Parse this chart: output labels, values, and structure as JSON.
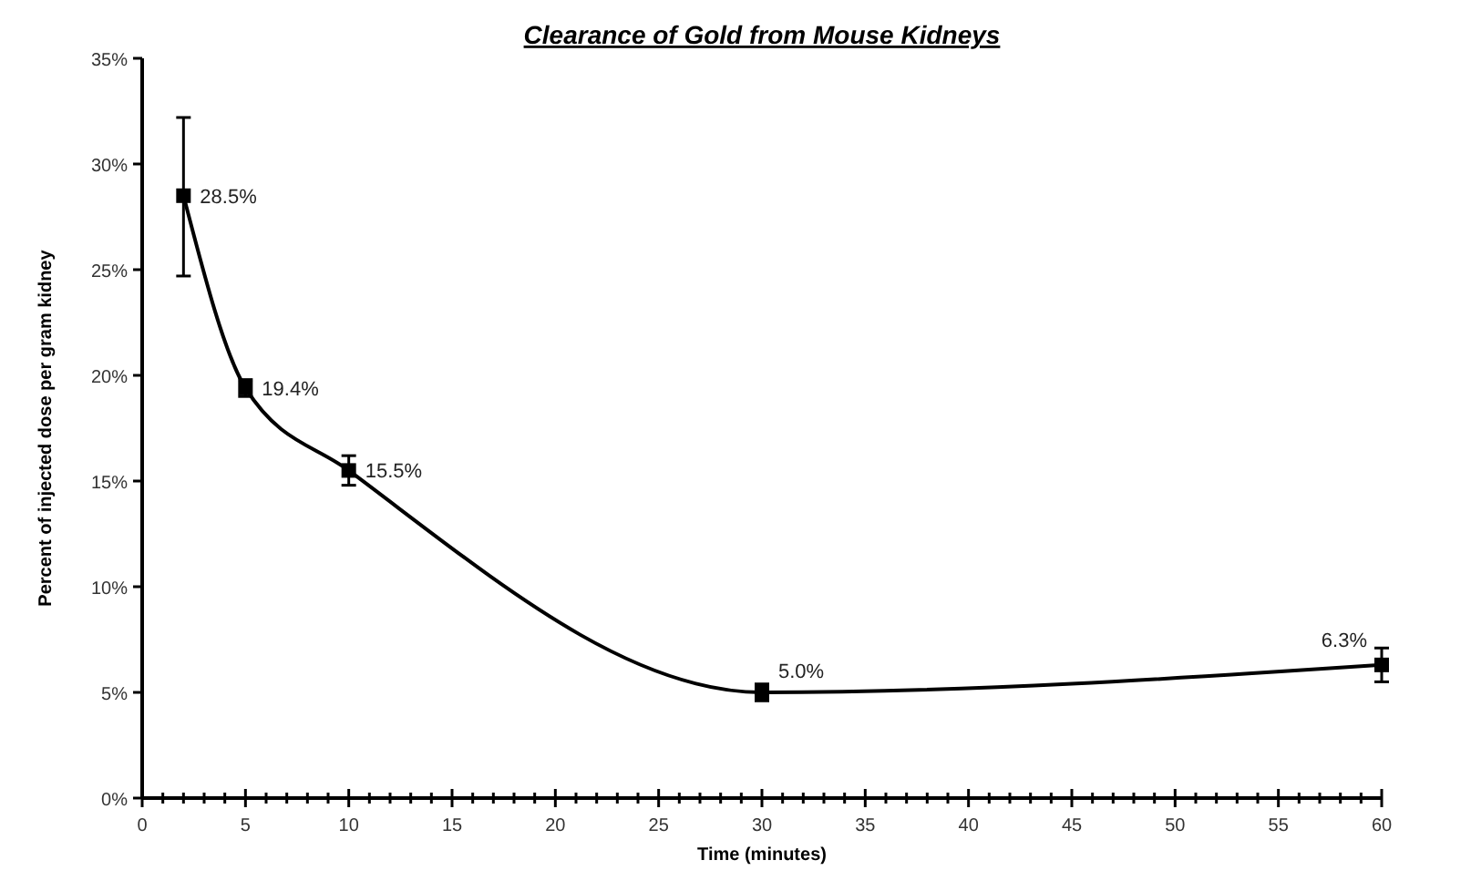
{
  "chart_data": {
    "type": "line",
    "title": "Clearance of Gold from Mouse Kidneys",
    "xlabel": "Time (minutes)",
    "ylabel": "Percent of injected dose per gram kidney",
    "x": [
      2,
      5,
      10,
      30,
      60
    ],
    "series": [
      {
        "color": "#000000",
        "values": [
          28.5,
          19.4,
          15.5,
          5.0,
          6.3
        ],
        "errors": [
          [
            24.7,
            32.2
          ],
          0.4,
          [
            14.8,
            16.2
          ],
          0.4,
          0.8
        ],
        "value_labels": [
          "28.5%",
          "19.4%",
          "15.5%",
          "5.0%",
          "6.3%"
        ]
      }
    ],
    "marker": "square",
    "line_style": "solid",
    "grid": false,
    "xlim": [
      0,
      60
    ],
    "ylim": [
      0,
      35
    ],
    "xticks": [
      0,
      {
        "value": 1,
        "label": null
      },
      {
        "value": 2,
        "label": null
      },
      {
        "value": 3,
        "label": null
      },
      {
        "value": 4,
        "label": null
      },
      5,
      {
        "value": 6,
        "label": null
      },
      {
        "value": 7,
        "label": null
      },
      {
        "value": 8,
        "label": null
      },
      {
        "value": 9,
        "label": null
      },
      10,
      {
        "value": 11,
        "label": null
      },
      {
        "value": 12,
        "label": null
      },
      {
        "value": 13,
        "label": null
      },
      {
        "value": 14,
        "label": null
      },
      15,
      {
        "value": 16,
        "label": null
      },
      {
        "value": 17,
        "label": null
      },
      {
        "value": 18,
        "label": null
      },
      {
        "value": 19,
        "label": null
      },
      20,
      {
        "value": 21,
        "label": null
      },
      {
        "value": 22,
        "label": null
      },
      {
        "value": 23,
        "label": null
      },
      {
        "value": 24,
        "label": null
      },
      25,
      {
        "value": 26,
        "label": null
      },
      {
        "value": 27,
        "label": null
      },
      {
        "value": 28,
        "label": null
      },
      {
        "value": 29,
        "label": null
      },
      30,
      {
        "value": 31,
        "label": null
      },
      {
        "value": 32,
        "label": null
      },
      {
        "value": 33,
        "label": null
      },
      {
        "value": 34,
        "label": null
      },
      35,
      {
        "value": 36,
        "label": null
      },
      {
        "value": 37,
        "label": null
      },
      {
        "value": 38,
        "label": null
      },
      {
        "value": 39,
        "label": null
      },
      40,
      {
        "value": 41,
        "label": null
      },
      {
        "value": 42,
        "label": null
      },
      {
        "value": 43,
        "label": null
      },
      {
        "value": 44,
        "label": null
      },
      45,
      {
        "value": 46,
        "label": null
      },
      {
        "value": 47,
        "label": null
      },
      {
        "value": 48,
        "label": null
      },
      {
        "value": 49,
        "label": null
      },
      50,
      {
        "value": 51,
        "label": null
      },
      {
        "value": 52,
        "label": null
      },
      {
        "value": 53,
        "label": null
      },
      {
        "value": 54,
        "label": null
      },
      55,
      {
        "value": 56,
        "label": null
      },
      {
        "value": 57,
        "label": null
      },
      {
        "value": 58,
        "label": null
      },
      {
        "value": 59,
        "label": null
      },
      60
    ],
    "yticks": [
      {
        "value": 0,
        "label": "0%"
      },
      {
        "value": 5,
        "label": "5%"
      },
      {
        "value": 10,
        "label": "10%"
      },
      {
        "value": 15,
        "label": "15%"
      },
      {
        "value": 20,
        "label": "20%"
      },
      {
        "value": 25,
        "label": "25%"
      },
      {
        "value": 30,
        "label": "30%"
      },
      {
        "value": 35,
        "label": "35%"
      }
    ]
  }
}
